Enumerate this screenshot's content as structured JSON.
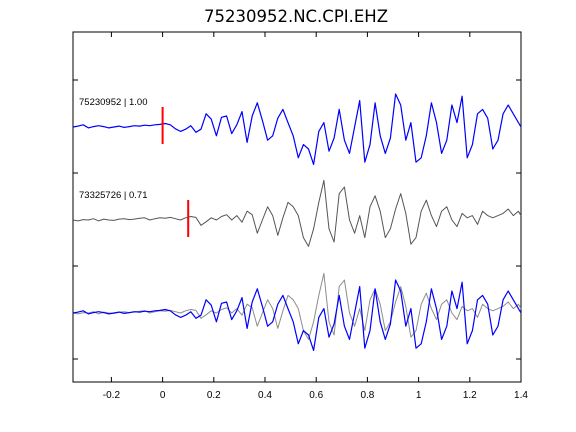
{
  "chart_data": {
    "type": "line",
    "title": "75230952.NC.CPI.EHZ",
    "xlabel": "",
    "ylabel": "",
    "xlim": [
      -0.35,
      1.4
    ],
    "x_ticks": [
      "-0.2",
      "0",
      "0.2",
      "0.4",
      "0.6",
      "0.8",
      "1",
      "1.2",
      "1.4"
    ],
    "x_tick_values": [
      -0.2,
      0,
      0.2,
      0.4,
      0.6,
      0.8,
      1.0,
      1.2,
      1.4
    ],
    "y_ticks_labeled": false,
    "grid": false,
    "colors": {
      "reference": "#0000ff",
      "matched": "#555555",
      "overlay_matched": "#8c8c8c",
      "pick": "#ff0000"
    },
    "traces": [
      {
        "label": "75230952 | 1.00",
        "event_id": "75230952",
        "correlation": 1.0,
        "color": "#0000ff",
        "pick_time": 0.0
      },
      {
        "label": "73325726 | 0.71",
        "event_id": "73325726",
        "correlation": 0.71,
        "color": "#555555",
        "pick_time": 0.1
      }
    ],
    "overlay": {
      "series": [
        "75230952",
        "73325726"
      ],
      "colors": [
        "#0000ff",
        "#8c8c8c"
      ]
    },
    "series": [
      {
        "event_id": "75230952",
        "x": [
          -0.35,
          -0.33,
          -0.31,
          -0.29,
          -0.27,
          -0.25,
          -0.23,
          -0.21,
          -0.19,
          -0.17,
          -0.15,
          -0.13,
          -0.11,
          -0.09,
          -0.07,
          -0.05,
          -0.03,
          -0.01,
          0.01,
          0.03,
          0.05,
          0.07,
          0.09,
          0.11,
          0.13,
          0.15,
          0.17,
          0.19,
          0.21,
          0.23,
          0.25,
          0.27,
          0.29,
          0.31,
          0.33,
          0.35,
          0.37,
          0.39,
          0.41,
          0.43,
          0.45,
          0.47,
          0.49,
          0.51,
          0.53,
          0.55,
          0.57,
          0.59,
          0.61,
          0.63,
          0.65,
          0.67,
          0.69,
          0.71,
          0.73,
          0.75,
          0.77,
          0.79,
          0.81,
          0.83,
          0.85,
          0.87,
          0.89,
          0.91,
          0.93,
          0.95,
          0.97,
          0.99,
          1.01,
          1.03,
          1.05,
          1.07,
          1.09,
          1.11,
          1.13,
          1.15,
          1.17,
          1.19,
          1.21,
          1.23,
          1.25,
          1.27,
          1.29,
          1.31,
          1.33,
          1.35,
          1.37,
          1.39,
          1.4
        ],
        "y": [
          0.0,
          0.02,
          0.05,
          -0.02,
          0.01,
          0.03,
          0.01,
          -0.02,
          0.0,
          0.02,
          -0.01,
          0.01,
          0.03,
          0.02,
          0.04,
          0.03,
          0.05,
          0.06,
          0.08,
          0.05,
          -0.04,
          -0.1,
          -0.05,
          0.03,
          -0.12,
          -0.05,
          0.3,
          0.18,
          -0.2,
          0.22,
          0.25,
          -0.15,
          0.05,
          0.35,
          -0.35,
          0.25,
          0.55,
          0.15,
          -0.3,
          -0.2,
          0.2,
          0.4,
          0.1,
          -0.2,
          -0.7,
          -0.4,
          -0.5,
          -0.85,
          -0.1,
          0.1,
          -0.55,
          -0.25,
          0.4,
          -0.3,
          -0.6,
          0.0,
          0.6,
          -0.8,
          -0.4,
          0.55,
          -0.2,
          -0.6,
          -0.25,
          0.75,
          0.5,
          -0.3,
          0.1,
          -0.8,
          -0.7,
          -0.2,
          0.55,
          0.1,
          -0.6,
          -0.3,
          0.5,
          0.1,
          0.7,
          -0.7,
          -0.4,
          0.3,
          0.4,
          0.2,
          -0.5,
          -0.3,
          0.3,
          0.5,
          0.3,
          0.1,
          0.0
        ]
      },
      {
        "event_id": "73325726",
        "x": [
          -0.35,
          -0.33,
          -0.31,
          -0.29,
          -0.27,
          -0.25,
          -0.23,
          -0.21,
          -0.19,
          -0.17,
          -0.15,
          -0.13,
          -0.11,
          -0.09,
          -0.07,
          -0.05,
          -0.03,
          -0.01,
          0.01,
          0.03,
          0.05,
          0.07,
          0.09,
          0.11,
          0.13,
          0.15,
          0.17,
          0.19,
          0.21,
          0.23,
          0.25,
          0.27,
          0.29,
          0.31,
          0.33,
          0.35,
          0.37,
          0.39,
          0.41,
          0.43,
          0.45,
          0.47,
          0.49,
          0.51,
          0.53,
          0.55,
          0.57,
          0.59,
          0.61,
          0.63,
          0.65,
          0.67,
          0.69,
          0.71,
          0.73,
          0.75,
          0.77,
          0.79,
          0.81,
          0.83,
          0.85,
          0.87,
          0.89,
          0.91,
          0.93,
          0.95,
          0.97,
          0.99,
          1.01,
          1.03,
          1.05,
          1.07,
          1.09,
          1.11,
          1.13,
          1.15,
          1.17,
          1.19,
          1.21,
          1.23,
          1.25,
          1.27,
          1.29,
          1.31,
          1.33,
          1.35,
          1.37,
          1.39,
          1.4
        ],
        "y": [
          0.0,
          -0.02,
          0.01,
          0.0,
          0.03,
          -0.02,
          0.02,
          0.0,
          -0.01,
          0.02,
          0.03,
          0.01,
          0.02,
          0.04,
          0.05,
          0.0,
          0.03,
          0.05,
          0.04,
          0.06,
          0.03,
          0.0,
          0.05,
          0.08,
          0.06,
          -0.12,
          -0.04,
          0.05,
          0.0,
          0.08,
          0.12,
          0.0,
          0.1,
          -0.05,
          0.2,
          0.12,
          -0.3,
          0.0,
          0.3,
          0.1,
          -0.35,
          0.05,
          0.4,
          0.3,
          0.1,
          -0.4,
          -0.6,
          -0.2,
          0.4,
          0.9,
          -0.2,
          -0.5,
          0.6,
          0.75,
          0.0,
          -0.3,
          0.1,
          -0.4,
          0.3,
          0.55,
          0.2,
          -0.4,
          -0.2,
          0.25,
          0.6,
          0.15,
          -0.55,
          -0.4,
          0.2,
          0.45,
          0.1,
          -0.15,
          0.2,
          0.3,
          0.0,
          -0.15,
          0.15,
          0.05,
          0.1,
          -0.1,
          0.2,
          0.1,
          0.05,
          0.1,
          0.15,
          0.25,
          0.1,
          0.2,
          0.1
        ]
      }
    ]
  }
}
